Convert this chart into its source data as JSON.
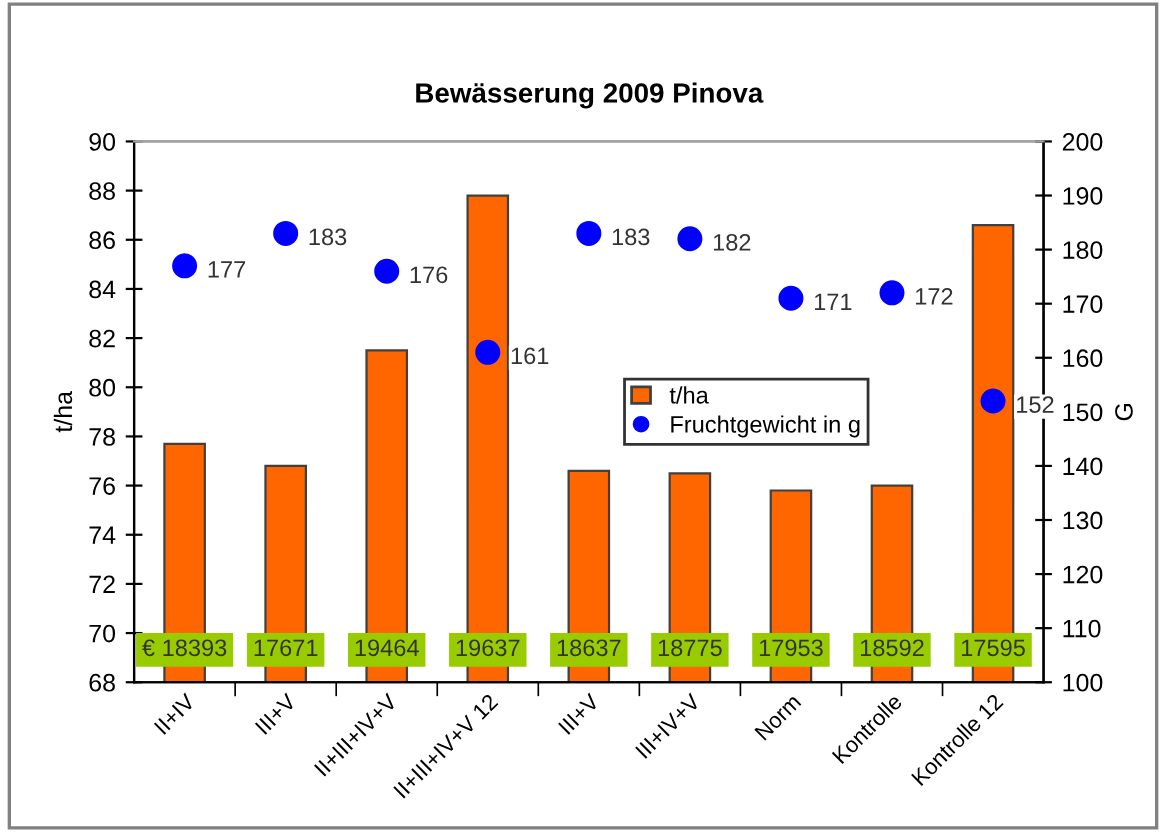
{
  "chart_data": {
    "type": "bar",
    "title": "Bewässerung 2009 Pinova",
    "ylabel": "t/ha",
    "y2label": "G",
    "categories": [
      "II+IV",
      "III+V",
      "II+III+IV+V",
      "II+III+IV+V 12",
      "III+V",
      "III+IV+V",
      "Norm",
      "Kontrolle",
      "Kontrolle 12"
    ],
    "series": [
      {
        "name": "t/ha",
        "color": "#ff6600",
        "values": [
          77.7,
          76.8,
          81.5,
          87.8,
          76.6,
          76.5,
          75.8,
          76.0,
          86.6
        ]
      },
      {
        "name": "Fruchtgewicht in g",
        "type": "scatter",
        "axis": "y2",
        "color": "#0000ff",
        "marker": "circle",
        "data_labels": true,
        "values": [
          177,
          183,
          176,
          161,
          183,
          182,
          171,
          172,
          152
        ]
      }
    ],
    "ylim": [
      68,
      90
    ],
    "yticks": [
      68,
      70,
      72,
      74,
      76,
      78,
      80,
      82,
      84,
      86,
      88,
      90
    ],
    "y2lim": [
      100,
      200
    ],
    "y2ticks": [
      100,
      110,
      120,
      130,
      140,
      150,
      160,
      170,
      180,
      190,
      200
    ],
    "grid": false,
    "legend": "center right",
    "annotations": [
      "€ 18393",
      "17671",
      "19464",
      "19637",
      "18637",
      "18775",
      "17953",
      "18592",
      "17595"
    ]
  }
}
